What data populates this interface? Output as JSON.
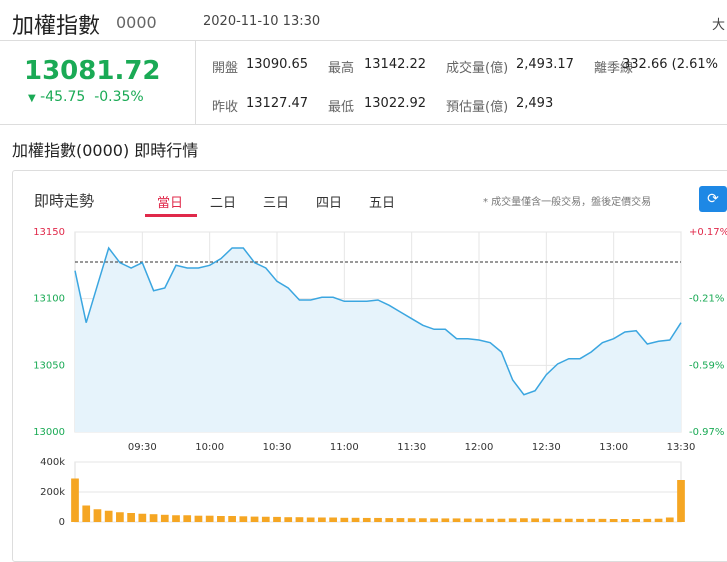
{
  "header": {
    "title": "加權指數",
    "code": "0000",
    "datetime": "2020-11-10 13:30",
    "corner": "大",
    "price": "13081.72",
    "change": "-45.75",
    "change_pct": "-0.35%",
    "stats": [
      [
        {
          "label": "開盤",
          "value": 13090.65
        },
        {
          "label": "最高",
          "value": 13142.22
        },
        {
          "label": "成交量(億)",
          "value": "2,493.17"
        },
        {
          "label": "離季線",
          "value": "332.66 (2.61%"
        }
      ],
      [
        {
          "label": "昨收",
          "value": 13127.47
        },
        {
          "label": "最低",
          "value": 13022.92
        },
        {
          "label": "預估量(億)",
          "value": "2,493"
        }
      ]
    ]
  },
  "section_title": "加權指數(0000) 即時行情",
  "panel": {
    "title": "即時走勢",
    "tabs": [
      "當日",
      "二日",
      "三日",
      "四日",
      "五日"
    ],
    "note": "* 成交量僅含一般交易，盤後定價交易"
  },
  "chart_data": [
    {
      "type": "line",
      "color": "#3ba6e0",
      "grid": true,
      "x": [
        0,
        5,
        10,
        15,
        20,
        25,
        30,
        35,
        40,
        45,
        50,
        55,
        60,
        65,
        70,
        75,
        80,
        85,
        90,
        95,
        100,
        105,
        110,
        115,
        120,
        125,
        130,
        135,
        140,
        145,
        150,
        155,
        160,
        165,
        170,
        175,
        180,
        185,
        190,
        195,
        200,
        205,
        210,
        215,
        220,
        225,
        230,
        235,
        240,
        245,
        250,
        255,
        260,
        265,
        270
      ],
      "values": [
        13121,
        13082,
        13110,
        13138,
        13127,
        13123,
        13127,
        13106,
        13108,
        13125,
        13123,
        13123,
        13125,
        13130,
        13138,
        13138,
        13127,
        13123,
        13113,
        13108,
        13099,
        13099,
        13101,
        13101,
        13098,
        13098,
        13098,
        13099,
        13095,
        13090,
        13085,
        13080,
        13077,
        13077,
        13070,
        13070,
        13069,
        13067,
        13060,
        13039,
        13028,
        13031,
        13043,
        13051,
        13055,
        13055,
        13060,
        13067,
        13070,
        13075,
        13076,
        13066,
        13068,
        13069,
        13082
      ],
      "xlim": [
        0,
        270
      ],
      "xticks": [
        {
          "value": 30,
          "label": "09:30"
        },
        {
          "value": 60,
          "label": "10:00"
        },
        {
          "value": 90,
          "label": "10:30"
        },
        {
          "value": 120,
          "label": "11:00"
        },
        {
          "value": 150,
          "label": "11:30"
        },
        {
          "value": 180,
          "label": "12:00"
        },
        {
          "value": 210,
          "label": "12:30"
        },
        {
          "value": 240,
          "label": "13:00"
        },
        {
          "value": 270,
          "label": "13:30"
        }
      ],
      "ylim": [
        13000,
        13150
      ],
      "yticks": [
        13000,
        13050,
        13100,
        13150
      ],
      "y2lim": [
        -0.971,
        0.172
      ],
      "y2ticks": [
        {
          "value": -0.971,
          "label": "-0.97%"
        },
        {
          "value": -0.59,
          "label": "-0.59%"
        },
        {
          "value": -0.209,
          "label": "-0.21%"
        },
        {
          "value": 0.172,
          "label": "+0.17%"
        }
      ]
    },
    {
      "type": "bar",
      "color": "#f5a623",
      "x": [
        0,
        5,
        10,
        15,
        20,
        25,
        30,
        35,
        40,
        45,
        50,
        55,
        60,
        65,
        70,
        75,
        80,
        85,
        90,
        95,
        100,
        105,
        110,
        115,
        120,
        125,
        130,
        135,
        140,
        145,
        150,
        155,
        160,
        165,
        170,
        175,
        180,
        185,
        190,
        195,
        200,
        205,
        210,
        215,
        220,
        225,
        230,
        235,
        240,
        245,
        250,
        255,
        260,
        265,
        270
      ],
      "values": [
        290000,
        110000,
        85000,
        75000,
        65000,
        60000,
        55000,
        52000,
        48000,
        45000,
        45000,
        42000,
        42000,
        40000,
        40000,
        38000,
        36000,
        35000,
        34000,
        32000,
        32000,
        30000,
        30000,
        30000,
        28000,
        28000,
        27000,
        27000,
        26000,
        26000,
        25000,
        25000,
        24000,
        24000,
        24000,
        23000,
        23000,
        22000,
        22000,
        24000,
        25000,
        24000,
        23000,
        22000,
        22000,
        21000,
        21000,
        21000,
        20000,
        20000,
        20000,
        21000,
        22000,
        30000,
        280000
      ],
      "xlim": [
        0,
        270
      ],
      "ylim": [
        0,
        400000
      ],
      "yticks": [
        {
          "value": 0,
          "label": "0"
        },
        {
          "value": 200000,
          "label": "200k"
        },
        {
          "value": 400000,
          "label": "400k"
        }
      ],
      "grid": true
    }
  ]
}
